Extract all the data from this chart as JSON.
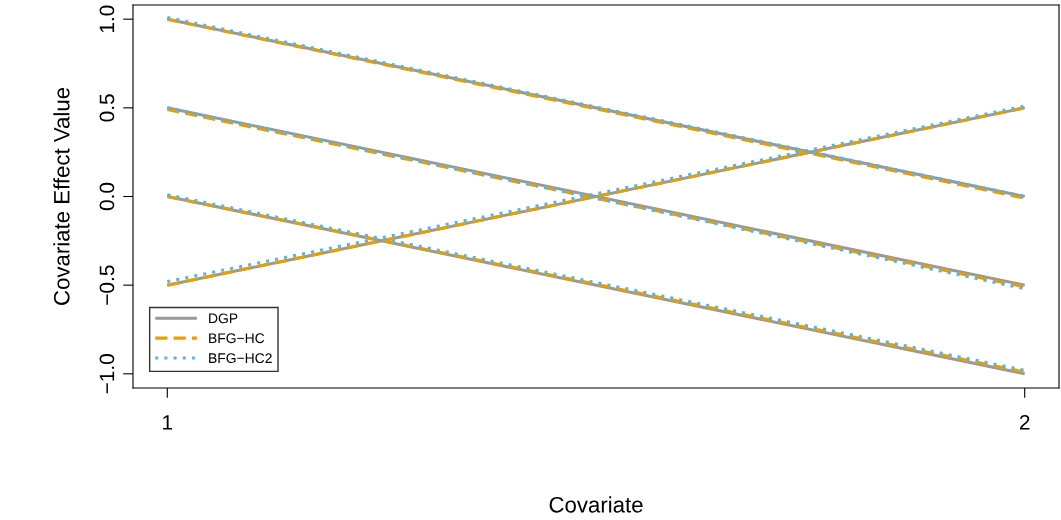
{
  "chart_data": {
    "type": "line",
    "xlabel": "Covariate",
    "ylabel": "Covariate Effect Value",
    "x": [
      1,
      2
    ],
    "xlim": [
      0.96,
      2.04
    ],
    "ylim": [
      -1.08,
      1.08
    ],
    "xticks": [
      1,
      2
    ],
    "yticks": [
      {
        "value": -1,
        "label": "−1.0"
      },
      {
        "value": -0.5,
        "label": "−0.5"
      },
      {
        "value": 0,
        "label": "0.0"
      },
      {
        "value": 0.5,
        "label": "0.5"
      },
      {
        "value": 1,
        "label": "1.0"
      }
    ],
    "grid": false,
    "legend": "bottom left",
    "series": [
      {
        "name": "DGP",
        "color": "#999999",
        "line_style": "solid",
        "values": [
          1.0,
          0.0
        ]
      },
      {
        "color": "#999999",
        "line_style": "solid",
        "values": [
          0.5,
          -0.5
        ]
      },
      {
        "color": "#999999",
        "line_style": "solid",
        "values": [
          0.0,
          -1.0
        ]
      },
      {
        "color": "#999999",
        "line_style": "solid",
        "values": [
          -0.5,
          0.5
        ]
      },
      {
        "name": "BFG−HC",
        "color": "#E69F00",
        "line_style": "dashed",
        "values": [
          1.0,
          -0.01
        ]
      },
      {
        "color": "#E69F00",
        "line_style": "dashed",
        "values": [
          0.49,
          -0.51
        ]
      },
      {
        "color": "#E69F00",
        "line_style": "dashed",
        "values": [
          0.0,
          -0.99
        ]
      },
      {
        "color": "#E69F00",
        "line_style": "dashed",
        "values": [
          -0.5,
          0.5
        ]
      },
      {
        "name": "BFG−HC2",
        "color": "#56B4E9",
        "line_style": "dotted",
        "values": [
          1.01,
          0.0
        ]
      },
      {
        "color": "#56B4E9",
        "line_style": "dotted",
        "values": [
          0.5,
          -0.52
        ]
      },
      {
        "color": "#56B4E9",
        "line_style": "dotted",
        "values": [
          0.01,
          -0.98
        ]
      },
      {
        "color": "#56B4E9",
        "line_style": "dotted",
        "values": [
          -0.48,
          0.51
        ]
      }
    ]
  }
}
